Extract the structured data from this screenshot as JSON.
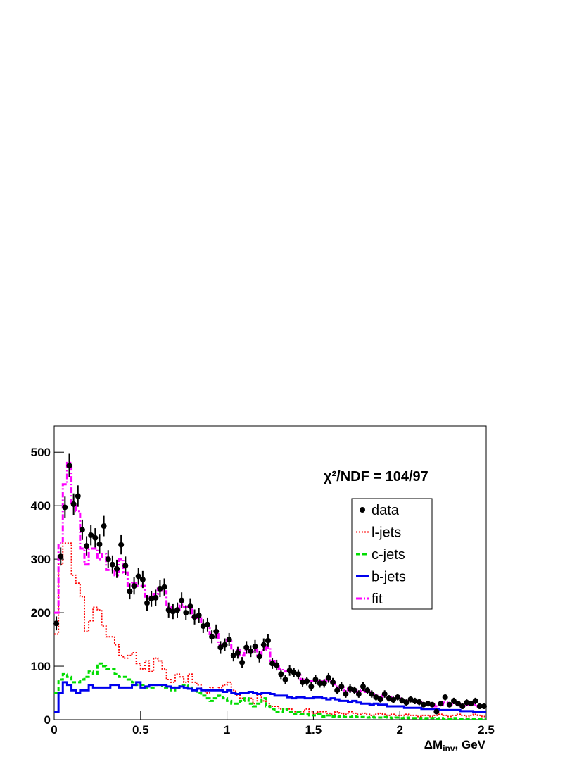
{
  "chart_data": {
    "type": "histogram",
    "annotation": "χ²/NDF  =  104/97",
    "xlabel_parts": [
      "ΔM",
      "inv",
      ", GeV"
    ],
    "bins": [
      0,
      0.025,
      0.05,
      0.075,
      0.1,
      0.125,
      0.15,
      0.175,
      0.2,
      0.225,
      0.25,
      0.275,
      0.3,
      0.325,
      0.35,
      0.375,
      0.4,
      0.425,
      0.45,
      0.475,
      0.5,
      0.525,
      0.55,
      0.575,
      0.6,
      0.625,
      0.65,
      0.675,
      0.7,
      0.725,
      0.75,
      0.775,
      0.8,
      0.825,
      0.85,
      0.875,
      0.9,
      0.925,
      0.95,
      0.975,
      1,
      1.025,
      1.05,
      1.075,
      1.1,
      1.125,
      1.15,
      1.175,
      1.2,
      1.225,
      1.25,
      1.275,
      1.3,
      1.325,
      1.35,
      1.375,
      1.4,
      1.425,
      1.45,
      1.475,
      1.5,
      1.525,
      1.55,
      1.575,
      1.6,
      1.625,
      1.65,
      1.675,
      1.7,
      1.725,
      1.75,
      1.775,
      1.8,
      1.825,
      1.85,
      1.875,
      1.9,
      1.925,
      1.95,
      1.975,
      2,
      2.025,
      2.05,
      2.075,
      2.1,
      2.125,
      2.15,
      2.175,
      2.2,
      2.225,
      2.25,
      2.275,
      2.3,
      2.325,
      2.35,
      2.375,
      2.4,
      2.425,
      2.45,
      2.475,
      2.5
    ],
    "series": [
      {
        "name": "l-jets",
        "color": "#ff0000",
        "style": "dotted",
        "values": [
          160,
          290,
          330,
          330,
          270,
          255,
          230,
          165,
          185,
          210,
          205,
          175,
          155,
          155,
          140,
          120,
          115,
          120,
          125,
          105,
          95,
          110,
          90,
          115,
          110,
          95,
          75,
          70,
          85,
          80,
          70,
          85,
          70,
          65,
          55,
          50,
          60,
          55,
          60,
          65,
          70,
          55,
          45,
          40,
          35,
          40,
          30,
          45,
          35,
          30,
          25,
          25,
          20,
          20,
          20,
          15,
          15,
          15,
          20,
          15,
          12,
          15,
          15,
          12,
          10,
          15,
          12,
          10,
          15,
          12,
          10,
          12,
          10,
          8,
          10,
          12,
          10,
          8,
          10,
          8,
          8,
          10,
          8,
          8,
          6,
          8,
          8,
          6,
          8,
          10,
          8,
          6,
          8,
          10,
          8,
          6,
          8,
          10,
          8,
          6
        ]
      },
      {
        "name": "c-jets",
        "color": "#00dd00",
        "style": "dashed",
        "values": [
          50,
          75,
          85,
          80,
          70,
          70,
          75,
          80,
          90,
          85,
          105,
          100,
          95,
          95,
          85,
          80,
          80,
          75,
          70,
          65,
          65,
          60,
          60,
          65,
          65,
          60,
          60,
          55,
          60,
          65,
          65,
          60,
          55,
          50,
          45,
          40,
          35,
          40,
          45,
          40,
          35,
          30,
          30,
          35,
          40,
          30,
          25,
          30,
          40,
          25,
          20,
          15,
          15,
          20,
          15,
          10,
          15,
          10,
          10,
          8,
          8,
          10,
          6,
          8,
          6,
          5,
          6,
          5,
          5,
          6,
          5,
          5,
          4,
          5,
          4,
          4,
          5,
          4,
          3,
          4,
          3,
          4,
          3,
          3,
          3,
          2,
          3,
          3,
          2,
          3,
          2,
          2,
          3,
          2,
          2,
          2,
          2,
          2,
          2,
          2
        ]
      },
      {
        "name": "b-jets",
        "color": "#0000ee",
        "style": "solid",
        "values": [
          15,
          50,
          70,
          65,
          55,
          50,
          55,
          55,
          65,
          60,
          60,
          60,
          60,
          65,
          65,
          60,
          60,
          60,
          65,
          70,
          60,
          62,
          65,
          65,
          65,
          65,
          62,
          60,
          60,
          62,
          60,
          58,
          55,
          58,
          55,
          55,
          55,
          55,
          55,
          52,
          55,
          50,
          48,
          50,
          50,
          52,
          50,
          48,
          50,
          50,
          48,
          45,
          45,
          45,
          42,
          40,
          42,
          42,
          40,
          40,
          42,
          42,
          40,
          38,
          40,
          38,
          35,
          35,
          33,
          35,
          32,
          30,
          30,
          28,
          30,
          28,
          28,
          25,
          25,
          25,
          25,
          22,
          22,
          22,
          22,
          20,
          20,
          20,
          20,
          18,
          18,
          18,
          18,
          18,
          16,
          16,
          16,
          15,
          15,
          15
        ]
      },
      {
        "name": "fit",
        "color": "#ff00ff",
        "style": "dashdot",
        "values": [
          200,
          330,
          440,
          480,
          400,
          390,
          320,
          290,
          320,
          320,
          300,
          310,
          280,
          280,
          270,
          300,
          275,
          250,
          255,
          250,
          250,
          230,
          230,
          235,
          245,
          240,
          210,
          205,
          205,
          215,
          210,
          210,
          190,
          195,
          180,
          175,
          160,
          160,
          140,
          145,
          150,
          130,
          130,
          120,
          130,
          125,
          130,
          120,
          130,
          135,
          110,
          100,
          95,
          90,
          90,
          85,
          85,
          75,
          75,
          72,
          75,
          70,
          72,
          75,
          70,
          62,
          60,
          55,
          58,
          55,
          52,
          55,
          52,
          48,
          45,
          42,
          45,
          42,
          38,
          40,
          38,
          35,
          35,
          33,
          32,
          30,
          30,
          28,
          25,
          28,
          32,
          28,
          30,
          28,
          26,
          28,
          28,
          28,
          25,
          25
        ]
      },
      {
        "name": "data",
        "color": "#000000",
        "style": "marker",
        "values": [
          180,
          305,
          397,
          475,
          403,
          418,
          355,
          325,
          345,
          340,
          328,
          362,
          300,
          290,
          282,
          327,
          288,
          240,
          250,
          268,
          262,
          218,
          226,
          228,
          245,
          248,
          205,
          202,
          205,
          223,
          200,
          212,
          192,
          195,
          175,
          178,
          155,
          165,
          135,
          140,
          150,
          120,
          125,
          107,
          135,
          128,
          137,
          118,
          140,
          148,
          105,
          102,
          85,
          75,
          92,
          88,
          85,
          70,
          72,
          62,
          75,
          68,
          68,
          78,
          70,
          55,
          62,
          48,
          58,
          55,
          48,
          62,
          55,
          48,
          42,
          38,
          48,
          40,
          37,
          42,
          36,
          32,
          38,
          35,
          33,
          28,
          30,
          28,
          15,
          30,
          42,
          28,
          35,
          30,
          25,
          32,
          30,
          35,
          25,
          25
        ],
        "errors": [
          13,
          17,
          20,
          22,
          20,
          20,
          19,
          18,
          19,
          18,
          18,
          19,
          17,
          17,
          17,
          18,
          17,
          15,
          16,
          16,
          16,
          15,
          15,
          15,
          16,
          16,
          14,
          14,
          14,
          15,
          14,
          15,
          14,
          14,
          13,
          13,
          12,
          13,
          12,
          12,
          12,
          11,
          11,
          10,
          12,
          11,
          12,
          11,
          12,
          12,
          10,
          10,
          9,
          9,
          10,
          9,
          9,
          8,
          8,
          8,
          9,
          8,
          8,
          9,
          8,
          7,
          8,
          7,
          8,
          7,
          7,
          8,
          7,
          7,
          6,
          6,
          7,
          6,
          6,
          6,
          6,
          6,
          6,
          6,
          6,
          5,
          5,
          5,
          4,
          5,
          6,
          5,
          6,
          5,
          5,
          6,
          5,
          6,
          5,
          5
        ]
      }
    ],
    "legend_order": [
      4,
      0,
      1,
      2,
      3
    ],
    "legend": "upper right",
    "xlim": [
      0,
      2.5
    ],
    "xticks": [
      0,
      0.5,
      1,
      1.5,
      2,
      2.5
    ],
    "ylim": [
      0,
      549
    ],
    "yticks": [
      0,
      100,
      200,
      300,
      400,
      500
    ]
  }
}
